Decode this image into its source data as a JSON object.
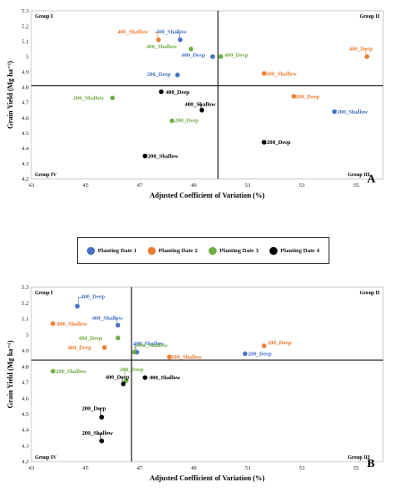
{
  "colors": {
    "Planting Date 1": "#4472C4",
    "Planting Date 2": "#ED7D31",
    "Planting Date 3": "#70AD47",
    "Planting Date 4": "#000000"
  },
  "legend": {
    "placement": "middle",
    "items": [
      "Planting Date 1",
      "Planting Date 2",
      "Planting Date 3",
      "Planting Date 4"
    ]
  },
  "chart_data": [
    {
      "type": "scatter",
      "panel": "A",
      "xlabel": "Adjusted Coefficient of Variation (%)",
      "ylabel": "Grain Yield (Mg ha⁻¹)",
      "xlim": [
        43,
        56
      ],
      "ylim": [
        4.2,
        5.3
      ],
      "xticks": [
        "43",
        "45",
        "47",
        "49",
        "51",
        "53",
        "55"
      ],
      "yticks": [
        "4.2",
        "4.3",
        "4.4",
        "4.5",
        "4.6",
        "4.7",
        "4.8",
        "4.9",
        "5",
        "5.1",
        "5.2",
        "5.3"
      ],
      "grid": false,
      "quadrant_lines": {
        "x": 49.9,
        "y": 4.81
      },
      "quadrant_labels": {
        "top_left": "Group I",
        "top_right": "Group II",
        "bottom_left": "Group IV",
        "bottom_right": "Group III"
      },
      "points": [
        {
          "label": "400_Shallow",
          "group": "Planting Date 1",
          "x": 48.5,
          "y": 5.11
        },
        {
          "label": "400_Deep",
          "group": "Planting Date 1",
          "x": 49.7,
          "y": 5.0
        },
        {
          "label": "200_Deep",
          "group": "Planting Date 1",
          "x": 48.4,
          "y": 4.88
        },
        {
          "label": "200_Shallow",
          "group": "Planting Date 1",
          "x": 54.2,
          "y": 4.64
        },
        {
          "label": "400_Shallow",
          "group": "Planting Date 2",
          "x": 47.7,
          "y": 5.11
        },
        {
          "label": "400_Deep",
          "group": "Planting Date 2",
          "x": 55.4,
          "y": 5.0
        },
        {
          "label": "200_Shallow",
          "group": "Planting Date 2",
          "x": 51.6,
          "y": 4.89
        },
        {
          "label": "200_Deep",
          "group": "Planting Date 2",
          "x": 52.7,
          "y": 4.74
        },
        {
          "label": "400_Shallow",
          "group": "Planting Date 3",
          "x": 48.9,
          "y": 5.05
        },
        {
          "label": "400_Deep",
          "group": "Planting Date 3",
          "x": 50.0,
          "y": 5.0
        },
        {
          "label": "200_Shallow",
          "group": "Planting Date 3",
          "x": 46.0,
          "y": 4.73
        },
        {
          "label": "200_Deep",
          "group": "Planting Date 3",
          "x": 48.2,
          "y": 4.58
        },
        {
          "label": "400_Deep",
          "group": "Planting Date 4",
          "x": 47.8,
          "y": 4.77
        },
        {
          "label": "400_Shallow",
          "group": "Planting Date 4",
          "x": 49.3,
          "y": 4.65
        },
        {
          "label": "200_Deep",
          "group": "Planting Date 4",
          "x": 51.6,
          "y": 4.44
        },
        {
          "label": "200_Shallow",
          "group": "Planting Date 4",
          "x": 47.2,
          "y": 4.35
        }
      ]
    },
    {
      "type": "scatter",
      "panel": "B",
      "xlabel": "Adjusted Coefficient of Variation (%)",
      "ylabel": "Grain Yield (Mg ha⁻¹)",
      "xlim": [
        43,
        56
      ],
      "ylim": [
        4.2,
        5.3
      ],
      "xticks": [
        "43",
        "45",
        "47",
        "49",
        "51",
        "53",
        "55"
      ],
      "yticks": [
        "4.2",
        "4.3",
        "4.4",
        "4.5",
        "4.6",
        "4.7",
        "4.8",
        "4.9",
        "5",
        "5.1",
        "5.2",
        "5.3"
      ],
      "grid": false,
      "quadrant_lines": {
        "x": 46.7,
        "y": 4.84
      },
      "quadrant_labels": {
        "top_left": "Group I",
        "top_right": "Group II",
        "bottom_left": "Group IV",
        "bottom_right": "Group III"
      },
      "points": [
        {
          "label": "400_Deep",
          "group": "Planting Date 1",
          "x": 44.7,
          "y": 5.18
        },
        {
          "label": "400_Shallow",
          "group": "Planting Date 1",
          "x": 46.2,
          "y": 5.06
        },
        {
          "label": "200_Shallow",
          "group": "Planting Date 1",
          "x": 46.9,
          "y": 4.89
        },
        {
          "label": "200_Deep",
          "group": "Planting Date 1",
          "x": 50.9,
          "y": 4.88
        },
        {
          "label": "400_Shallow",
          "group": "Planting Date 2",
          "x": 43.8,
          "y": 5.07
        },
        {
          "label": "400_Deep",
          "group": "Planting Date 2",
          "x": 45.7,
          "y": 4.92
        },
        {
          "label": "200_Deep",
          "group": "Planting Date 2",
          "x": 51.6,
          "y": 4.93
        },
        {
          "label": "200_Shallow",
          "group": "Planting Date 2",
          "x": 48.1,
          "y": 4.86
        },
        {
          "label": "400_Deep",
          "group": "Planting Date 3",
          "x": 46.2,
          "y": 4.98
        },
        {
          "label": "400_Shallow",
          "group": "Planting Date 3",
          "x": 46.8,
          "y": 4.89
        },
        {
          "label": "200_Shallow",
          "group": "Planting Date 3",
          "x": 43.8,
          "y": 4.77
        },
        {
          "label": "200_Deep",
          "group": "Planting Date 3",
          "x": 46.5,
          "y": 4.71
        },
        {
          "label": "400_Deep",
          "group": "Planting Date 4",
          "x": 46.4,
          "y": 4.69
        },
        {
          "label": "400_Shallow",
          "group": "Planting Date 4",
          "x": 47.2,
          "y": 4.73
        },
        {
          "label": "200_Deep",
          "group": "Planting Date 4",
          "x": 45.6,
          "y": 4.48
        },
        {
          "label": "200_Shallow",
          "group": "Planting Date 4",
          "x": 45.6,
          "y": 4.33
        }
      ]
    }
  ]
}
